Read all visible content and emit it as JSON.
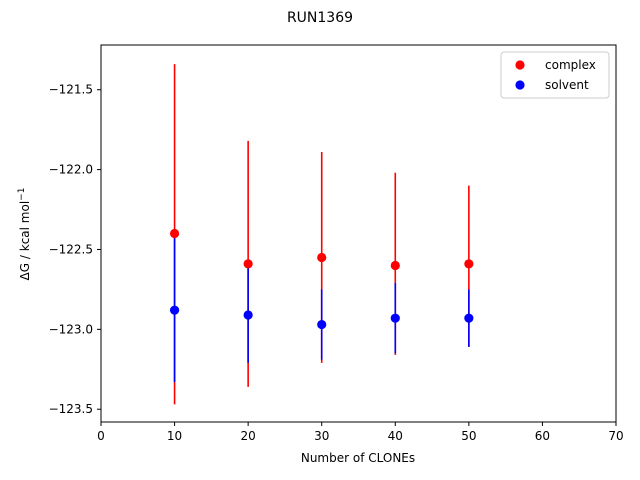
{
  "chart_data": {
    "type": "scatter",
    "title": "RUN1369",
    "xlabel": "Number of CLONEs",
    "ylabel_base": "ΔG / kcal mol",
    "ylabel_sup": "−1",
    "xlim": [
      0,
      70
    ],
    "ylim": [
      -123.58,
      -121.22
    ],
    "xticks": [
      0,
      10,
      20,
      30,
      40,
      50,
      60,
      70
    ],
    "xtick_labels": [
      "0",
      "10",
      "20",
      "30",
      "40",
      "50",
      "60",
      "70"
    ],
    "yticks": [
      -123.5,
      -123.0,
      -122.5,
      -122.0,
      -121.5
    ],
    "ytick_labels": [
      "−123.5",
      "−123.0",
      "−122.5",
      "−122.0",
      "−121.5"
    ],
    "grid": false,
    "legend_position": "top-right",
    "series": [
      {
        "name": "complex",
        "color": "#ff0000",
        "x": [
          10,
          20,
          30,
          40,
          50
        ],
        "y": [
          -122.4,
          -122.59,
          -122.55,
          -122.6,
          -122.59
        ],
        "yerr_low": [
          -123.47,
          -123.36,
          -123.21,
          -123.16,
          -123.11
        ],
        "yerr_high": [
          -121.34,
          -121.82,
          -121.89,
          -122.02,
          -122.1
        ]
      },
      {
        "name": "solvent",
        "color": "#0000ff",
        "x": [
          10,
          20,
          30,
          40,
          50
        ],
        "y": [
          -122.88,
          -122.91,
          -122.97,
          -122.93,
          -122.93
        ],
        "yerr_low": [
          -123.33,
          -123.21,
          -123.19,
          -123.15,
          -123.11
        ],
        "yerr_high": [
          -122.43,
          -122.61,
          -122.75,
          -122.71,
          -122.75
        ]
      }
    ]
  }
}
